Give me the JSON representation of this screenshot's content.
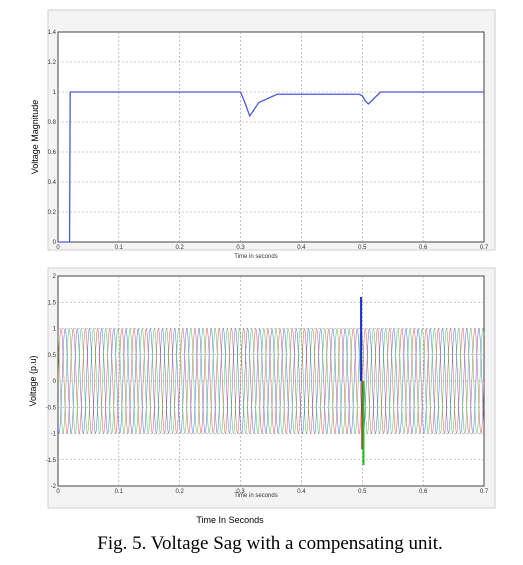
{
  "caption": "Fig. 5. Voltage Sag with a compensating unit.",
  "chart_data": [
    {
      "type": "line",
      "title": "",
      "xlabel": "Time in seconds",
      "ylabel": "Voltage Magnitude",
      "xlim": [
        0,
        0.7
      ],
      "ylim": [
        0,
        1.4
      ],
      "xticks": [
        "0",
        "0.1",
        "0.2",
        "0.3",
        "0.4",
        "0.5",
        "0.6",
        "0.7"
      ],
      "yticks": [
        "0",
        "0.2",
        "0.4",
        "0.6",
        "0.8",
        "1",
        "1.2",
        "1.4"
      ],
      "grid": true,
      "series": [
        {
          "color": "#4a5bd6",
          "x": [
            0,
            0.019,
            0.02,
            0.28,
            0.3,
            0.308,
            0.315,
            0.33,
            0.36,
            0.495,
            0.5,
            0.505,
            0.51,
            0.52,
            0.53,
            0.7
          ],
          "y": [
            0,
            0,
            1,
            1,
            1,
            0.92,
            0.84,
            0.93,
            0.985,
            0.985,
            0.975,
            0.94,
            0.92,
            0.96,
            1,
            1
          ]
        }
      ]
    },
    {
      "type": "line",
      "title": "",
      "xlabel": "Time in seconds",
      "ylabel": "Voltage (p.u)",
      "xlim": [
        0,
        0.7
      ],
      "ylim": [
        -2,
        2
      ],
      "xticks": [
        "0",
        "0.1",
        "0.2",
        "0.3",
        "0.4",
        "0.5",
        "0.6",
        "0.7"
      ],
      "yticks": [
        "-2",
        "-1.5",
        "-1",
        "-0.5",
        "0",
        "0.5",
        "1",
        "1.5",
        "2"
      ],
      "grid": true,
      "waveform": {
        "phases": 3,
        "amplitude": 1,
        "frequency_hz": 50,
        "colors": [
          "#e03030",
          "#3050e0",
          "#30b040"
        ],
        "transient_at": 0.5,
        "transient_peaks": [
          {
            "color": "#1a2ad8",
            "value": 1.6
          },
          {
            "color": "#c02020",
            "value": -1.3
          },
          {
            "color": "#20c020",
            "value": -1.6
          }
        ]
      }
    }
  ],
  "panel_bottom": {
    "xlabel_outer": "Time In Seconds"
  }
}
